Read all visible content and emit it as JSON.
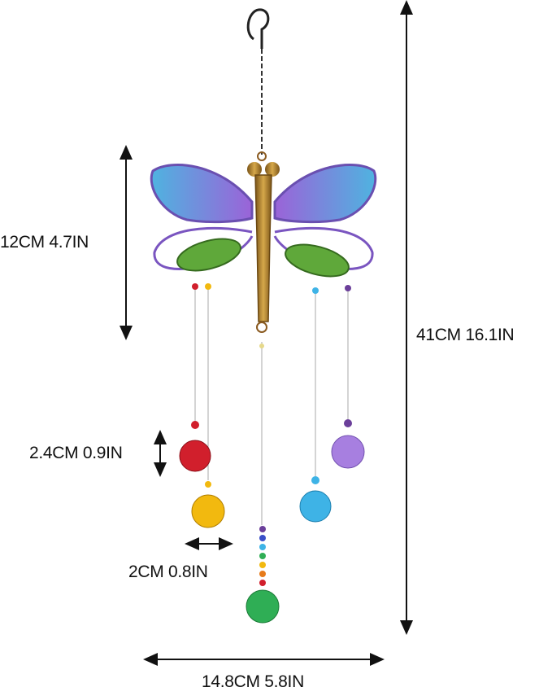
{
  "dimensions": {
    "wing_height": "12CM 4.7IN",
    "total_length": "41CM 16.1IN",
    "crystal_height": "2.4CM 0.9IN",
    "crystal_width": "2CM 0.8IN",
    "total_width": "14.8CM 5.8IN"
  },
  "colors": {
    "wing_blue": "#4fb3e0",
    "wing_purple": "#9b63d8",
    "body_gold": "#b8862e",
    "leaf_green": "#5fa83a",
    "red_crystal": "#d11f2c",
    "yellow_crystal": "#f2b90f",
    "green_crystal": "#2fae55",
    "blue_crystal": "#3eb3e6",
    "purple_crystal": "#a77fe0"
  }
}
